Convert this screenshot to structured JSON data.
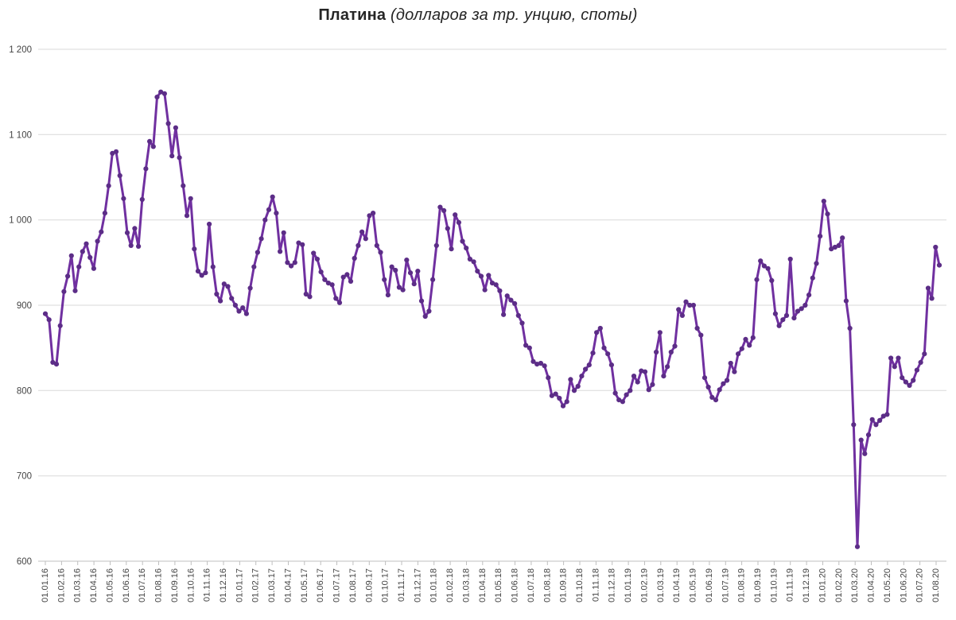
{
  "title": {
    "main": "Платина",
    "subtitle": " (долларов за тр. унцию, споты)"
  },
  "chart_data": {
    "type": "line",
    "title": "Платина (долларов за тр. унцию, споты)",
    "legend": "none",
    "grid": "horizontal",
    "ylim": [
      600,
      1200
    ],
    "yticks": [
      600,
      700,
      800,
      900,
      1000,
      1100,
      1200
    ],
    "ytick_labels": [
      "600",
      "700",
      "800",
      "900",
      "1 000",
      "1 100",
      "1 200"
    ],
    "line_color": "#7030A0",
    "marker_color": "#5C2D87",
    "gridline_color": "#D9D9D9",
    "axis_color": "#BFBFBF",
    "label_color": "#444444",
    "x_labels": [
      "01.01.16",
      "01.02.16",
      "01.03.16",
      "01.04.16",
      "01.05.16",
      "01.06.16",
      "01.07.16",
      "01.08.16",
      "01.09.16",
      "01.10.16",
      "01.11.16",
      "01.12.16",
      "01.01.17",
      "01.02.17",
      "01.03.17",
      "01.04.17",
      "01.05.17",
      "01.06.17",
      "01.07.17",
      "01.08.17",
      "01.09.17",
      "01.10.17",
      "01.11.17",
      "01.12.17",
      "01.01.18",
      "01.02.18",
      "01.03.18",
      "01.04.18",
      "01.05.18",
      "01.06.18",
      "01.07.18",
      "01.08.18",
      "01.09.18",
      "01.10.18",
      "01.11.18",
      "01.12.18",
      "01.01.19",
      "01.02.19",
      "01.03.19",
      "01.04.19",
      "01.05.19",
      "01.06.19",
      "01.07.19",
      "01.08.19",
      "01.09.19",
      "01.10.19",
      "01.11.19",
      "01.12.19",
      "01.01.20",
      "01.02.20",
      "01.03.20",
      "01.04.20",
      "01.05.20",
      "01.06.20",
      "01.07.20",
      "01.08.20"
    ],
    "x_frequency": "weekly",
    "values": [
      890,
      883,
      833,
      831,
      876,
      916,
      934,
      958,
      917,
      945,
      963,
      972,
      956,
      943,
      975,
      986,
      1008,
      1040,
      1078,
      1080,
      1052,
      1025,
      985,
      970,
      990,
      969,
      1024,
      1060,
      1092,
      1086,
      1144,
      1150,
      1148,
      1113,
      1075,
      1108,
      1073,
      1040,
      1005,
      1025,
      966,
      940,
      935,
      938,
      995,
      945,
      913,
      905,
      925,
      922,
      908,
      900,
      893,
      897,
      890,
      920,
      945,
      962,
      978,
      1000,
      1012,
      1027,
      1008,
      963,
      985,
      950,
      946,
      950,
      973,
      971,
      913,
      910,
      961,
      954,
      939,
      930,
      926,
      924,
      908,
      903,
      933,
      936,
      928,
      955,
      970,
      986,
      978,
      1005,
      1008,
      970,
      962,
      930,
      912,
      945,
      941,
      921,
      918,
      953,
      938,
      925,
      940,
      905,
      887,
      893,
      930,
      970,
      1015,
      1011,
      990,
      966,
      1006,
      997,
      975,
      967,
      954,
      951,
      940,
      934,
      918,
      935,
      926,
      924,
      917,
      889,
      911,
      906,
      902,
      888,
      879,
      853,
      850,
      834,
      831,
      832,
      829,
      815,
      794,
      796,
      791,
      782,
      787,
      813,
      800,
      805,
      817,
      825,
      830,
      844,
      868,
      873,
      850,
      843,
      830,
      797,
      789,
      787,
      795,
      800,
      817,
      810,
      823,
      822,
      801,
      807,
      845,
      868,
      817,
      828,
      845,
      852,
      895,
      888,
      904,
      900,
      900,
      873,
      865,
      815,
      804,
      792,
      789,
      801,
      808,
      812,
      832,
      822,
      843,
      849,
      860,
      853,
      862,
      930,
      952,
      946,
      943,
      929,
      890,
      876,
      883,
      888,
      954,
      885,
      893,
      896,
      900,
      912,
      932,
      949,
      981,
      1022,
      1007,
      966,
      968,
      970,
      979,
      905,
      873,
      760,
      617,
      742,
      726,
      748,
      766,
      760,
      765,
      770,
      772,
      838,
      828,
      838,
      815,
      810,
      806,
      812,
      824,
      833,
      843,
      920,
      908,
      968,
      947
    ]
  }
}
